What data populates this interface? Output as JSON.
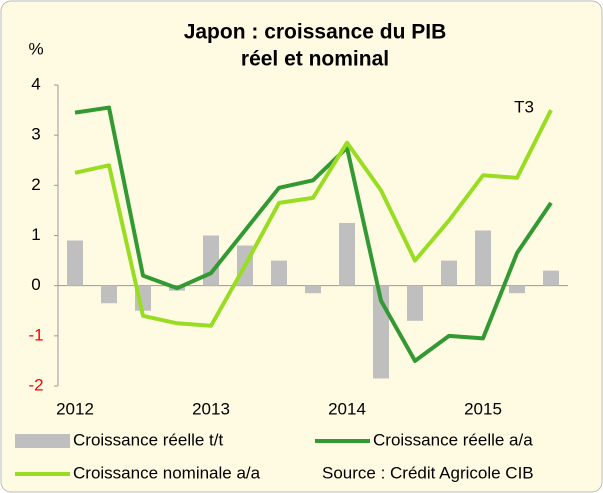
{
  "chart_data": {
    "type": "bar-line",
    "title": [
      "Japon : croissance du PIB",
      "réel et nominal"
    ],
    "y_label": "%",
    "annotation": "T3",
    "source": "Source : Crédit Agricole CIB",
    "categories": [
      "2012",
      null,
      null,
      null,
      "2013",
      null,
      null,
      null,
      "2014",
      null,
      null,
      null,
      "2015",
      null,
      null
    ],
    "series": [
      {
        "name": "Croissance réelle t/t",
        "type": "bar",
        "color": "#bfbfbf",
        "values": [
          0.9,
          -0.35,
          -0.5,
          -0.1,
          1.0,
          0.8,
          0.5,
          -0.15,
          1.25,
          -1.85,
          -0.7,
          0.5,
          1.1,
          -0.15,
          0.3
        ]
      },
      {
        "name": "Croissance réelle a/a",
        "type": "line",
        "color": "#339933",
        "values": [
          3.45,
          3.55,
          0.2,
          -0.05,
          0.25,
          1.1,
          1.95,
          2.1,
          2.75,
          -0.3,
          -1.5,
          -1.0,
          -1.05,
          0.65,
          1.65
        ]
      },
      {
        "name": "Croissance nominale a/a",
        "type": "line",
        "color": "#99dd22",
        "values": [
          2.25,
          2.4,
          -0.6,
          -0.75,
          -0.8,
          0.4,
          1.65,
          1.75,
          2.85,
          1.9,
          0.5,
          1.3,
          2.2,
          2.15,
          3.5
        ]
      }
    ],
    "ylim": [
      -2,
      4
    ],
    "yticks": [
      -2,
      -1,
      0,
      1,
      2,
      3,
      4
    ],
    "negative_tick_color": "#ff0000"
  }
}
